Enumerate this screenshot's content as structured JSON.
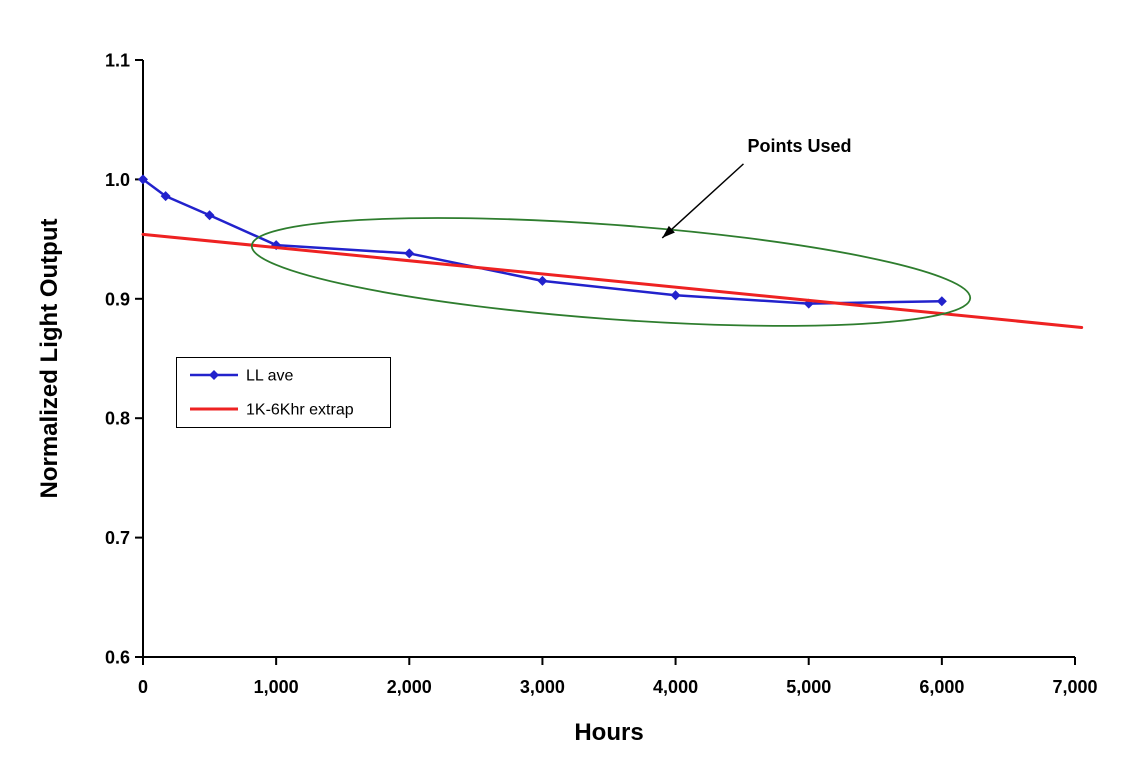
{
  "page": {
    "background": "#FFFFFF"
  },
  "chart_data": {
    "type": "line",
    "title": "",
    "xlabel": "Hours",
    "ylabel": "Normalized Light Output",
    "xlim": [
      0,
      7000
    ],
    "ylim": [
      0.6,
      1.1
    ],
    "grid": false,
    "axis_color": "#000000",
    "x_ticks": [
      0,
      1000,
      2000,
      3000,
      4000,
      5000,
      6000,
      7000
    ],
    "x_tick_labels": [
      "0",
      "1,000",
      "2,000",
      "3,000",
      "4,000",
      "5,000",
      "6,000",
      "7,000"
    ],
    "y_ticks": [
      0.6,
      0.7,
      0.8,
      0.9,
      1.0,
      1.1
    ],
    "y_tick_labels": [
      "0.6",
      "0.7",
      "0.8",
      "0.9",
      "1.0",
      "1.1"
    ],
    "series": [
      {
        "name": "LL ave",
        "color": "#2222CC",
        "marker": "diamond",
        "line_width": 2.5,
        "x": [
          0,
          170,
          500,
          1000,
          2000,
          3000,
          4000,
          5000,
          6000
        ],
        "y": [
          1.0,
          0.986,
          0.97,
          0.945,
          0.938,
          0.915,
          0.903,
          0.896,
          0.898
        ]
      },
      {
        "name": "1K-6Khr extrap",
        "color": "#EE2222",
        "marker": "none",
        "line_width": 3,
        "x": [
          0,
          7050
        ],
        "y": [
          0.954,
          0.876
        ]
      }
    ],
    "legend": {
      "position": "inside-left",
      "entries": [
        "LL ave",
        "1K-6Khr extrap"
      ]
    },
    "annotations": [
      {
        "type": "ellipse",
        "name": "points-used-ellipse",
        "color": "#2E7D2E",
        "cx": 3515,
        "cy": 0.9225,
        "rx": 2705,
        "ry": 0.0395,
        "rotation_deg": 4.2
      },
      {
        "type": "text-arrow",
        "name": "points-used-callout",
        "text": "Points Used",
        "color": "#000000",
        "text_x": 4540,
        "text_y": 1.023,
        "arrow_from_x": 4510,
        "arrow_from_y": 1.013,
        "arrow_to_x": 3900,
        "arrow_to_y": 0.951
      }
    ]
  }
}
